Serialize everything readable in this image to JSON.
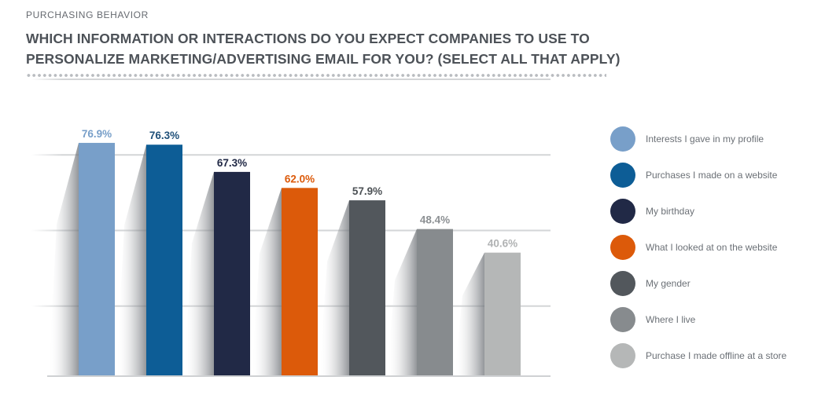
{
  "header": {
    "section": "PURCHASING BEHAVIOR",
    "title": "WHICH INFORMATION OR INTERACTIONS DO YOU EXPECT COMPANIES TO USE TO PERSONALIZE MARKETING/ADVERTISING EMAIL FOR YOU? (SELECT ALL THAT APPLY)"
  },
  "chart_data": {
    "type": "bar",
    "title": "WHICH INFORMATION OR INTERACTIONS DO YOU EXPECT COMPANIES TO USE TO PERSONALIZE MARKETING/ADVERTISING EMAIL FOR YOU? (SELECT ALL THAT APPLY)",
    "xlabel": "",
    "ylabel": "",
    "ylim": [
      0,
      100
    ],
    "grid": true,
    "legend_position": "right",
    "categories": [
      "Interests I gave in my profile",
      "Purchases I made on a website",
      "My birthday",
      "What I looked at on the website",
      "My gender",
      "Where I live",
      "Purchase I made offline at a store"
    ],
    "values": [
      76.9,
      76.3,
      67.3,
      62.0,
      57.9,
      48.4,
      40.6
    ],
    "value_labels": [
      "76.9%",
      "76.3%",
      "67.3%",
      "62.0%",
      "57.9%",
      "48.4%",
      "40.6%"
    ],
    "colors": [
      "#789fc9",
      "#0d5d96",
      "#212946",
      "#dc5a0a",
      "#52575c",
      "#878b8e",
      "#b5b7b7"
    ],
    "label_colors": [
      "#789fc9",
      "#1f5079",
      "#212946",
      "#dc5a0a",
      "#4c5155",
      "#8c9093",
      "#b0b2b3"
    ]
  }
}
